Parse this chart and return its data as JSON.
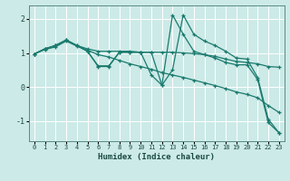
{
  "title": "",
  "xlabel": "Humidex (Indice chaleur)",
  "bg_color": "#cceae7",
  "line_color": "#1a7a6e",
  "grid_color": "#ffffff",
  "xlim": [
    -0.5,
    23.5
  ],
  "ylim": [
    -1.6,
    2.4
  ],
  "yticks": [
    -1,
    0,
    1,
    2
  ],
  "xticks": [
    0,
    1,
    2,
    3,
    4,
    5,
    6,
    7,
    8,
    9,
    10,
    11,
    12,
    13,
    14,
    15,
    16,
    17,
    18,
    19,
    20,
    21,
    22,
    23
  ],
  "lines": [
    {
      "x": [
        0,
        1,
        2,
        3,
        4,
        5,
        6,
        7,
        8,
        9,
        10,
        11,
        12,
        13,
        14,
        15,
        16,
        17,
        18,
        19,
        20,
        21,
        22,
        23
      ],
      "y": [
        0.97,
        1.12,
        1.22,
        1.38,
        1.22,
        1.12,
        1.05,
        1.05,
        1.05,
        1.05,
        1.02,
        1.02,
        1.02,
        1.02,
        1.0,
        0.98,
        0.95,
        0.9,
        0.82,
        0.75,
        0.72,
        0.68,
        0.6,
        0.58
      ]
    },
    {
      "x": [
        0,
        1,
        2,
        3,
        5,
        6,
        7,
        8,
        9,
        10,
        11,
        12,
        13,
        14,
        15,
        16,
        17,
        18,
        19,
        20,
        21,
        22,
        23
      ],
      "y": [
        0.97,
        1.12,
        1.22,
        1.38,
        1.05,
        0.6,
        0.6,
        1.02,
        1.02,
        1.02,
        1.02,
        0.05,
        0.5,
        2.12,
        1.55,
        1.35,
        1.22,
        1.05,
        0.85,
        0.82,
        0.28,
        -0.95,
        -1.35
      ]
    },
    {
      "x": [
        0,
        1,
        2,
        3,
        4,
        5,
        6,
        7,
        8,
        9,
        10,
        11,
        12,
        13,
        14,
        15,
        16,
        17,
        18,
        19,
        20,
        21,
        22,
        23
      ],
      "y": [
        0.97,
        1.12,
        1.22,
        1.38,
        1.22,
        1.05,
        0.62,
        0.62,
        1.02,
        1.02,
        1.02,
        0.35,
        0.05,
        2.12,
        1.55,
        1.05,
        0.95,
        0.85,
        0.72,
        0.65,
        0.65,
        0.22,
        -1.05,
        -1.35
      ]
    },
    {
      "x": [
        0,
        1,
        2,
        3,
        4,
        5,
        6,
        7,
        8,
        9,
        10,
        11,
        12,
        13,
        14,
        15,
        16,
        17,
        18,
        19,
        20,
        21,
        22,
        23
      ],
      "y": [
        0.97,
        1.1,
        1.18,
        1.35,
        1.2,
        1.08,
        0.95,
        0.88,
        0.78,
        0.68,
        0.6,
        0.52,
        0.42,
        0.35,
        0.28,
        0.2,
        0.12,
        0.04,
        -0.05,
        -0.15,
        -0.22,
        -0.32,
        -0.55,
        -0.75
      ]
    }
  ]
}
